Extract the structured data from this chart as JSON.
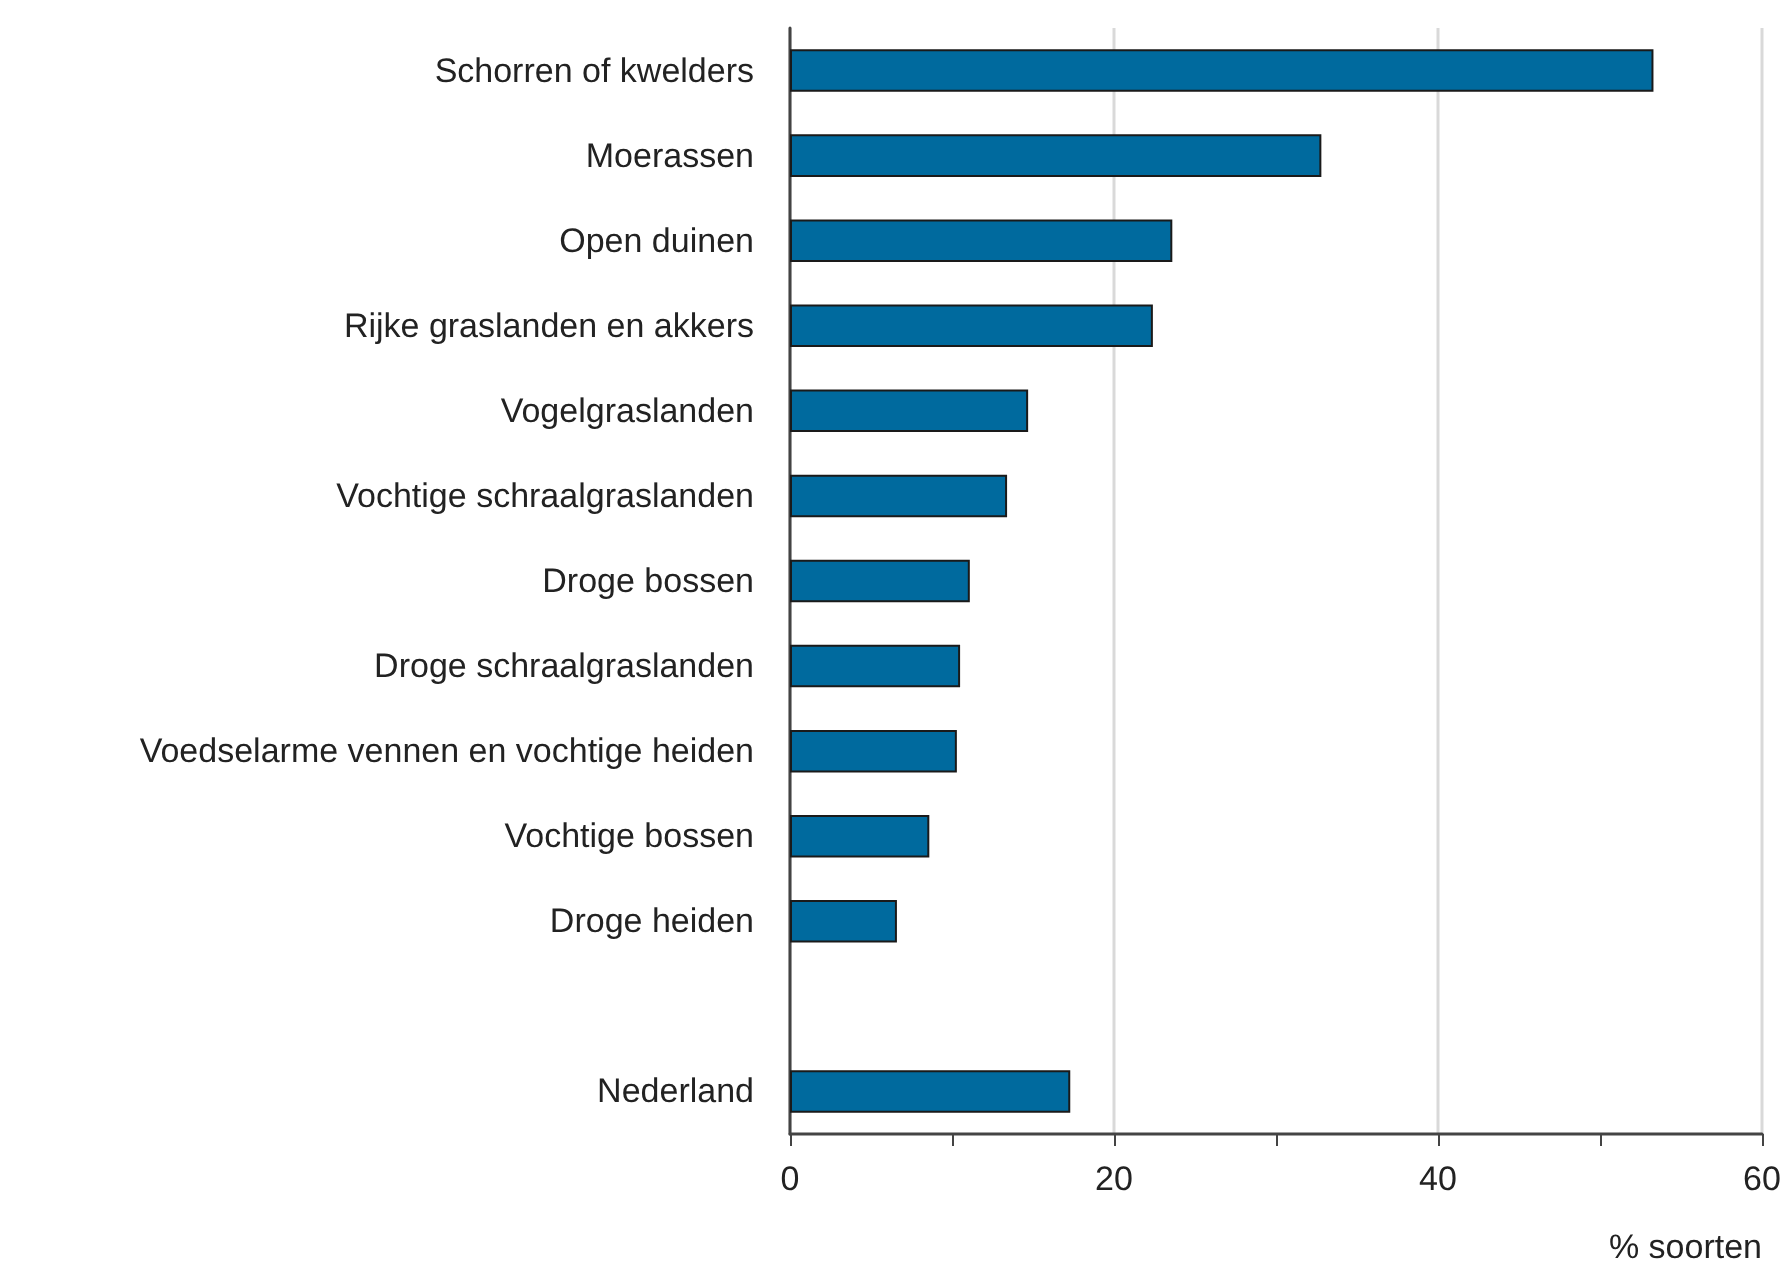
{
  "chart_data": {
    "type": "bar",
    "orientation": "horizontal",
    "xlabel": "% soorten",
    "categories": [
      "Schorren of kwelders",
      "Moerassen",
      "Open duinen",
      "Rijke graslanden en akkers",
      "Vogelgraslanden",
      "Vochtige schraalgraslanden",
      "Droge bossen",
      "Droge schraalgraslanden",
      "Voedselarme vennen en vochtige heiden",
      "Vochtige bossen",
      "Droge heiden",
      null,
      "Nederland"
    ],
    "values": [
      53.3,
      32.8,
      23.6,
      22.4,
      14.7,
      13.4,
      11.1,
      10.5,
      10.3,
      8.6,
      6.6,
      null,
      17.3
    ],
    "color": "#006a9e",
    "xlim": [
      0,
      60
    ],
    "xticks": [
      0,
      {
        "value": 10,
        "label": null
      },
      20,
      {
        "value": 30,
        "label": null
      },
      40,
      {
        "value": 50,
        "label": null
      },
      60
    ],
    "grid": "x"
  }
}
